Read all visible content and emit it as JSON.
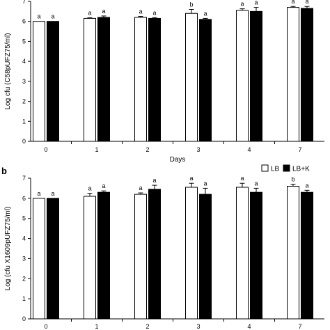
{
  "legend": {
    "items": [
      {
        "label": "LB",
        "fill": "#ffffff"
      },
      {
        "label": "LB+K",
        "fill": "#000000"
      }
    ]
  },
  "chart_data": [
    {
      "type": "bar",
      "panel_label": "",
      "categories": [
        "0",
        "1",
        "2",
        "3",
        "4",
        "7"
      ],
      "xlabel": "Days",
      "ylabel": "Log cfu (C58pUFZ75/ml)",
      "ylim": [
        0,
        7
      ],
      "yticks": [
        0,
        1,
        2,
        3,
        4,
        5,
        6,
        7
      ],
      "series": [
        {
          "name": "LB",
          "color": "#ffffff",
          "values": [
            6.0,
            6.15,
            6.2,
            6.4,
            6.55,
            6.7
          ],
          "errors": [
            0.0,
            0.03,
            0.05,
            0.2,
            0.08,
            0.05
          ],
          "letters": [
            "a",
            "a",
            "a",
            "b",
            "a",
            "a"
          ]
        },
        {
          "name": "LB+K",
          "color": "#000000",
          "values": [
            6.0,
            6.2,
            6.15,
            6.1,
            6.5,
            6.65
          ],
          "errors": [
            0.0,
            0.07,
            0.04,
            0.05,
            0.2,
            0.1
          ],
          "letters": [
            "a",
            "a",
            "a",
            "a",
            "a",
            "a"
          ]
        }
      ]
    },
    {
      "type": "bar",
      "panel_label": "b",
      "categories": [
        "0",
        "1",
        "2",
        "3",
        "4",
        "7"
      ],
      "xlabel": "",
      "ylabel": "Log (cfu X1609pUFZ75/ml)",
      "ylim": [
        0,
        7
      ],
      "yticks": [
        0,
        1,
        2,
        3,
        4,
        5,
        6,
        7
      ],
      "series": [
        {
          "name": "LB",
          "color": "#ffffff",
          "values": [
            6.0,
            6.1,
            6.2,
            6.55,
            6.55,
            6.6
          ],
          "errors": [
            0.0,
            0.15,
            0.07,
            0.2,
            0.2,
            0.1
          ],
          "letters": [
            "a",
            "a",
            "a",
            "a",
            "a",
            "b"
          ]
        },
        {
          "name": "LB+K",
          "color": "#000000",
          "values": [
            6.0,
            6.3,
            6.45,
            6.2,
            6.3,
            6.3
          ],
          "errors": [
            0.0,
            0.07,
            0.2,
            0.3,
            0.2,
            0.1
          ],
          "letters": [
            "a",
            "a",
            "a",
            "a",
            "a",
            "a"
          ]
        }
      ]
    }
  ]
}
